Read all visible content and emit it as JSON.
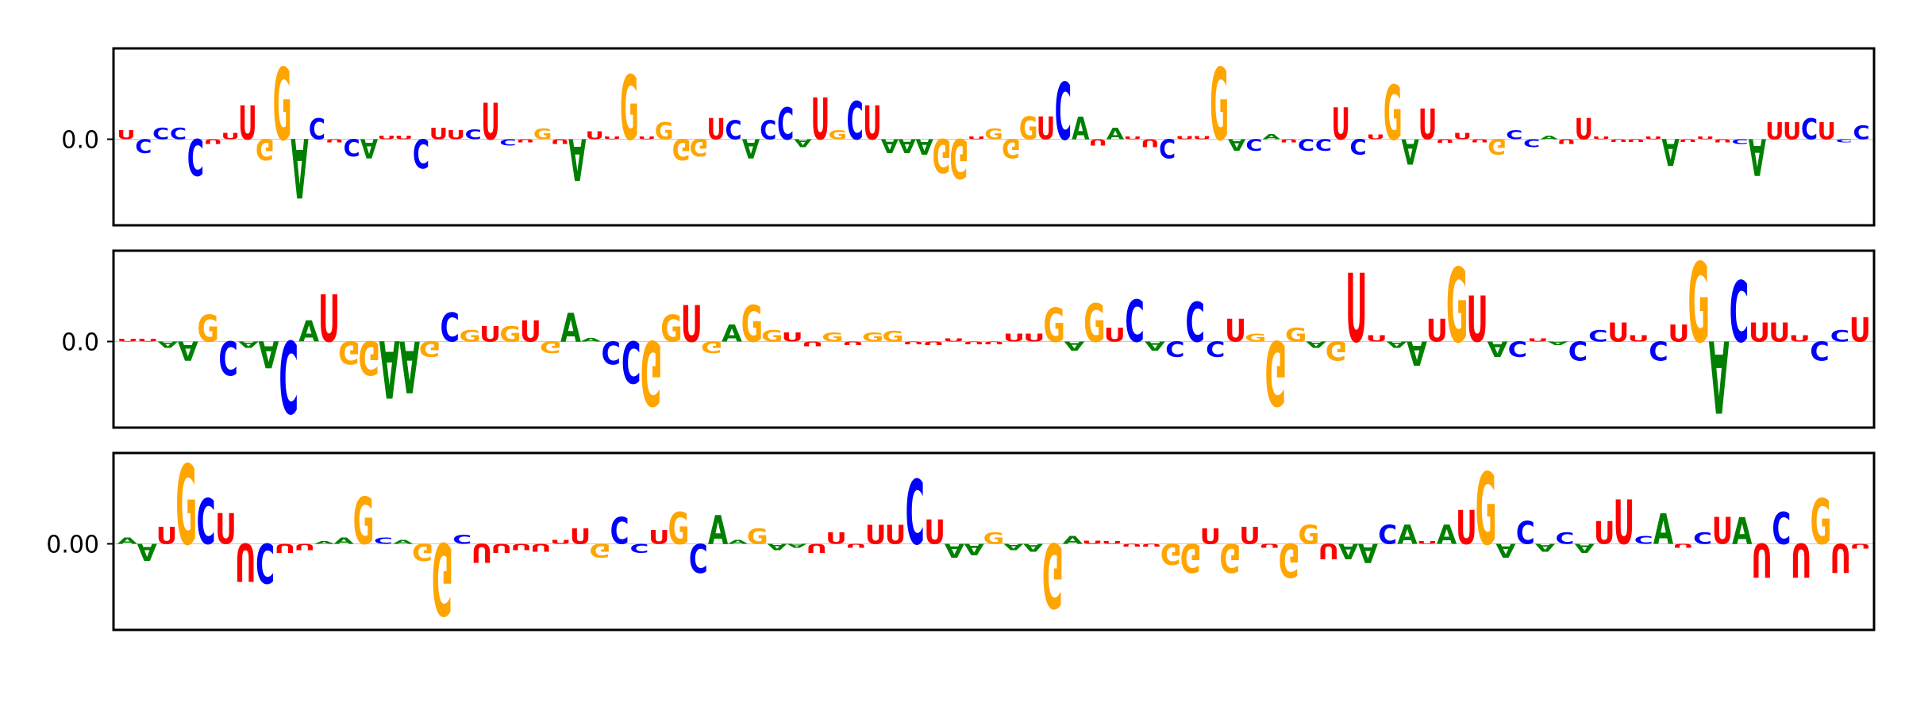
{
  "colors": {
    "A": "#008000",
    "C": "#0000ff",
    "G": "#ffa500",
    "U": "#ff0000"
  },
  "chart_data": [
    {
      "type": "sequence_logo",
      "alphabet": [
        "A",
        "C",
        "G",
        "U"
      ],
      "ytick_label": "0.0",
      "ylim": [
        -1,
        1
      ],
      "xticks": false,
      "positions": [
        {
          "l": "U",
          "v": 0.12
        },
        {
          "l": "C",
          "v": -0.18
        },
        {
          "l": "C",
          "v": 0.15
        },
        {
          "l": "C",
          "v": 0.15
        },
        {
          "l": "C",
          "v": -0.48
        },
        {
          "l": "U",
          "v": -0.06
        },
        {
          "l": "U",
          "v": 0.08
        },
        {
          "l": "U",
          "v": 0.45
        },
        {
          "l": "G",
          "v": -0.28
        },
        {
          "l": "G",
          "v": 0.95
        },
        {
          "l": "A",
          "v": -0.78
        },
        {
          "l": "C",
          "v": 0.28
        },
        {
          "l": "U",
          "v": -0.04
        },
        {
          "l": "C",
          "v": -0.22
        },
        {
          "l": "A",
          "v": -0.25
        },
        {
          "l": "U",
          "v": 0.05
        },
        {
          "l": "U",
          "v": 0.05
        },
        {
          "l": "C",
          "v": -0.38
        },
        {
          "l": "U",
          "v": 0.15
        },
        {
          "l": "U",
          "v": 0.12
        },
        {
          "l": "C",
          "v": 0.13
        },
        {
          "l": "U",
          "v": 0.48
        },
        {
          "l": "C",
          "v": -0.08
        },
        {
          "l": "U",
          "v": -0.04
        },
        {
          "l": "G",
          "v": 0.14
        },
        {
          "l": "U",
          "v": -0.06
        },
        {
          "l": "A",
          "v": -0.55
        },
        {
          "l": "U",
          "v": 0.1
        },
        {
          "l": "U",
          "v": 0.03
        },
        {
          "l": "G",
          "v": 0.85
        },
        {
          "l": "U",
          "v": 0.02
        },
        {
          "l": "G",
          "v": 0.22
        },
        {
          "l": "G",
          "v": -0.28
        },
        {
          "l": "G",
          "v": -0.22
        },
        {
          "l": "U",
          "v": 0.28
        },
        {
          "l": "C",
          "v": 0.25
        },
        {
          "l": "A",
          "v": -0.25
        },
        {
          "l": "C",
          "v": 0.25
        },
        {
          "l": "C",
          "v": 0.42
        },
        {
          "l": "A",
          "v": -0.1
        },
        {
          "l": "U",
          "v": 0.55
        },
        {
          "l": "G",
          "v": 0.12
        },
        {
          "l": "C",
          "v": 0.5
        },
        {
          "l": "U",
          "v": 0.45
        },
        {
          "l": "A",
          "v": -0.18
        },
        {
          "l": "A",
          "v": -0.18
        },
        {
          "l": "A",
          "v": -0.2
        },
        {
          "l": "G",
          "v": -0.45
        },
        {
          "l": "G",
          "v": -0.52
        },
        {
          "l": "U",
          "v": 0.03
        },
        {
          "l": "G",
          "v": 0.14
        },
        {
          "l": "G",
          "v": -0.25
        },
        {
          "l": "G",
          "v": 0.3
        },
        {
          "l": "U",
          "v": 0.3
        },
        {
          "l": "C",
          "v": 0.75
        },
        {
          "l": "A",
          "v": 0.3
        },
        {
          "l": "U",
          "v": -0.08
        },
        {
          "l": "A",
          "v": 0.15
        },
        {
          "l": "U",
          "v": 0.03
        },
        {
          "l": "U",
          "v": -0.1
        },
        {
          "l": "C",
          "v": -0.25
        },
        {
          "l": "U",
          "v": 0.04
        },
        {
          "l": "U",
          "v": 0.04
        },
        {
          "l": "G",
          "v": 0.95
        },
        {
          "l": "A",
          "v": -0.15
        },
        {
          "l": "C",
          "v": -0.15
        },
        {
          "l": "A",
          "v": 0.07
        },
        {
          "l": "U",
          "v": -0.04
        },
        {
          "l": "C",
          "v": -0.15
        },
        {
          "l": "C",
          "v": -0.15
        },
        {
          "l": "U",
          "v": 0.42
        },
        {
          "l": "C",
          "v": -0.2
        },
        {
          "l": "U",
          "v": 0.06
        },
        {
          "l": "G",
          "v": 0.72
        },
        {
          "l": "A",
          "v": -0.33
        },
        {
          "l": "U",
          "v": 0.4
        },
        {
          "l": "U",
          "v": -0.05
        },
        {
          "l": "U",
          "v": 0.08
        },
        {
          "l": "U",
          "v": -0.04
        },
        {
          "l": "G",
          "v": -0.2
        },
        {
          "l": "C",
          "v": 0.12
        },
        {
          "l": "C",
          "v": -0.1
        },
        {
          "l": "A",
          "v": 0.05
        },
        {
          "l": "U",
          "v": -0.06
        },
        {
          "l": "U",
          "v": 0.28
        },
        {
          "l": "U",
          "v": 0.03
        },
        {
          "l": "U",
          "v": -0.02
        },
        {
          "l": "U",
          "v": -0.03
        },
        {
          "l": "U",
          "v": 0.02
        },
        {
          "l": "A",
          "v": -0.35
        },
        {
          "l": "U",
          "v": -0.03
        },
        {
          "l": "U",
          "v": 0.03
        },
        {
          "l": "U",
          "v": -0.04
        },
        {
          "l": "C",
          "v": -0.06
        },
        {
          "l": "A",
          "v": -0.48
        },
        {
          "l": "U",
          "v": 0.22
        },
        {
          "l": "U",
          "v": 0.22
        },
        {
          "l": "C",
          "v": 0.28
        },
        {
          "l": "U",
          "v": 0.22
        },
        {
          "l": "C",
          "v": -0.04
        },
        {
          "l": "C",
          "v": 0.18
        }
      ]
    },
    {
      "type": "sequence_logo",
      "alphabet": [
        "A",
        "C",
        "G",
        "U"
      ],
      "ytick_label": "0.0",
      "ylim": [
        -1,
        1
      ],
      "xticks": false,
      "positions": [
        {
          "l": "U",
          "v": 0.02
        },
        {
          "l": "U",
          "v": 0.02
        },
        {
          "l": "A",
          "v": -0.08
        },
        {
          "l": "A",
          "v": -0.25
        },
        {
          "l": "G",
          "v": 0.35
        },
        {
          "l": "C",
          "v": -0.45
        },
        {
          "l": "A",
          "v": -0.08
        },
        {
          "l": "A",
          "v": -0.35
        },
        {
          "l": "C",
          "v": -0.95
        },
        {
          "l": "A",
          "v": 0.28
        },
        {
          "l": "U",
          "v": 0.62
        },
        {
          "l": "G",
          "v": -0.3
        },
        {
          "l": "G",
          "v": -0.45
        },
        {
          "l": "A",
          "v": -0.75
        },
        {
          "l": "A",
          "v": -0.68
        },
        {
          "l": "G",
          "v": -0.2
        },
        {
          "l": "C",
          "v": 0.38
        },
        {
          "l": "G",
          "v": 0.15
        },
        {
          "l": "U",
          "v": 0.2
        },
        {
          "l": "G",
          "v": 0.2
        },
        {
          "l": "U",
          "v": 0.28
        },
        {
          "l": "G",
          "v": -0.15
        },
        {
          "l": "A",
          "v": 0.38
        },
        {
          "l": "A",
          "v": 0.05
        },
        {
          "l": "C",
          "v": -0.3
        },
        {
          "l": "C",
          "v": -0.55
        },
        {
          "l": "G",
          "v": -0.85
        },
        {
          "l": "G",
          "v": 0.35
        },
        {
          "l": "U",
          "v": 0.48
        },
        {
          "l": "G",
          "v": -0.15
        },
        {
          "l": "A",
          "v": 0.22
        },
        {
          "l": "G",
          "v": 0.48
        },
        {
          "l": "G",
          "v": 0.15
        },
        {
          "l": "U",
          "v": 0.12
        },
        {
          "l": "U",
          "v": -0.06
        },
        {
          "l": "G",
          "v": 0.12
        },
        {
          "l": "U",
          "v": -0.05
        },
        {
          "l": "G",
          "v": 0.12
        },
        {
          "l": "G",
          "v": 0.14
        },
        {
          "l": "U",
          "v": -0.03
        },
        {
          "l": "U",
          "v": -0.05
        },
        {
          "l": "U",
          "v": 0.04
        },
        {
          "l": "U",
          "v": -0.02
        },
        {
          "l": "U",
          "v": -0.02
        },
        {
          "l": "U",
          "v": 0.1
        },
        {
          "l": "U",
          "v": 0.1
        },
        {
          "l": "G",
          "v": 0.45
        },
        {
          "l": "A",
          "v": -0.12
        },
        {
          "l": "G",
          "v": 0.5
        },
        {
          "l": "U",
          "v": 0.18
        },
        {
          "l": "C",
          "v": 0.55
        },
        {
          "l": "A",
          "v": -0.12
        },
        {
          "l": "C",
          "v": -0.2
        },
        {
          "l": "C",
          "v": 0.52
        },
        {
          "l": "C",
          "v": -0.2
        },
        {
          "l": "U",
          "v": 0.3
        },
        {
          "l": "G",
          "v": 0.1
        },
        {
          "l": "G",
          "v": -0.85
        },
        {
          "l": "G",
          "v": 0.18
        },
        {
          "l": "A",
          "v": -0.08
        },
        {
          "l": "G",
          "v": -0.25
        },
        {
          "l": "U",
          "v": 0.9
        },
        {
          "l": "U",
          "v": 0.08
        },
        {
          "l": "A",
          "v": -0.08
        },
        {
          "l": "A",
          "v": -0.32
        },
        {
          "l": "U",
          "v": 0.3
        },
        {
          "l": "G",
          "v": 0.98
        },
        {
          "l": "U",
          "v": 0.6
        },
        {
          "l": "A",
          "v": -0.2
        },
        {
          "l": "C",
          "v": -0.2
        },
        {
          "l": "U",
          "v": 0.04
        },
        {
          "l": "A",
          "v": -0.05
        },
        {
          "l": "C",
          "v": -0.25
        },
        {
          "l": "C",
          "v": 0.15
        },
        {
          "l": "U",
          "v": 0.25
        },
        {
          "l": "U",
          "v": 0.08
        },
        {
          "l": "C",
          "v": -0.25
        },
        {
          "l": "U",
          "v": 0.22
        },
        {
          "l": "G",
          "v": 1.05
        },
        {
          "l": "A",
          "v": -0.95
        },
        {
          "l": "C",
          "v": 0.8
        },
        {
          "l": "U",
          "v": 0.25
        },
        {
          "l": "U",
          "v": 0.25
        },
        {
          "l": "U",
          "v": 0.08
        },
        {
          "l": "C",
          "v": -0.25
        },
        {
          "l": "C",
          "v": 0.15
        },
        {
          "l": "U",
          "v": 0.32
        }
      ]
    },
    {
      "type": "sequence_logo",
      "alphabet": [
        "A",
        "C",
        "G",
        "U"
      ],
      "ytick_label": "0.00",
      "ylim": [
        -1,
        1
      ],
      "xticks": false,
      "positions": [
        {
          "l": "A",
          "v": 0.08
        },
        {
          "l": "A",
          "v": -0.22
        },
        {
          "l": "U",
          "v": 0.22
        },
        {
          "l": "G",
          "v": 1.05
        },
        {
          "l": "C",
          "v": 0.6
        },
        {
          "l": "U",
          "v": 0.4
        },
        {
          "l": "U",
          "v": -0.5
        },
        {
          "l": "C",
          "v": -0.52
        },
        {
          "l": "U",
          "v": -0.12
        },
        {
          "l": "U",
          "v": -0.08
        },
        {
          "l": "A",
          "v": 0.03
        },
        {
          "l": "A",
          "v": 0.08
        },
        {
          "l": "G",
          "v": 0.62
        },
        {
          "l": "C",
          "v": 0.08
        },
        {
          "l": "A",
          "v": 0.05
        },
        {
          "l": "G",
          "v": -0.22
        },
        {
          "l": "G",
          "v": -0.95
        },
        {
          "l": "C",
          "v": 0.12
        },
        {
          "l": "U",
          "v": -0.25
        },
        {
          "l": "U",
          "v": -0.12
        },
        {
          "l": "U",
          "v": -0.08
        },
        {
          "l": "U",
          "v": -0.1
        },
        {
          "l": "U",
          "v": 0.05
        },
        {
          "l": "U",
          "v": 0.2
        },
        {
          "l": "G",
          "v": -0.18
        },
        {
          "l": "C",
          "v": 0.35
        },
        {
          "l": "C",
          "v": -0.12
        },
        {
          "l": "U",
          "v": 0.18
        },
        {
          "l": "G",
          "v": 0.42
        },
        {
          "l": "C",
          "v": -0.38
        },
        {
          "l": "A",
          "v": 0.38
        },
        {
          "l": "A",
          "v": 0.05
        },
        {
          "l": "G",
          "v": 0.2
        },
        {
          "l": "A",
          "v": -0.08
        },
        {
          "l": "A",
          "v": -0.05
        },
        {
          "l": "U",
          "v": -0.12
        },
        {
          "l": "U",
          "v": 0.15
        },
        {
          "l": "U",
          "v": -0.05
        },
        {
          "l": "U",
          "v": 0.25
        },
        {
          "l": "U",
          "v": 0.25
        },
        {
          "l": "C",
          "v": 0.85
        },
        {
          "l": "U",
          "v": 0.32
        },
        {
          "l": "A",
          "v": -0.18
        },
        {
          "l": "A",
          "v": -0.15
        },
        {
          "l": "G",
          "v": 0.15
        },
        {
          "l": "A",
          "v": -0.08
        },
        {
          "l": "A",
          "v": -0.1
        },
        {
          "l": "G",
          "v": -0.85
        },
        {
          "l": "A",
          "v": 0.1
        },
        {
          "l": "U",
          "v": 0.04
        },
        {
          "l": "U",
          "v": 0.02
        },
        {
          "l": "U",
          "v": -0.02
        },
        {
          "l": "U",
          "v": -0.03
        },
        {
          "l": "G",
          "v": -0.28
        },
        {
          "l": "G",
          "v": -0.38
        },
        {
          "l": "U",
          "v": 0.2
        },
        {
          "l": "G",
          "v": -0.38
        },
        {
          "l": "U",
          "v": 0.22
        },
        {
          "l": "U",
          "v": -0.05
        },
        {
          "l": "G",
          "v": -0.45
        },
        {
          "l": "G",
          "v": 0.25
        },
        {
          "l": "U",
          "v": -0.2
        },
        {
          "l": "A",
          "v": -0.2
        },
        {
          "l": "A",
          "v": -0.25
        },
        {
          "l": "C",
          "v": 0.25
        },
        {
          "l": "A",
          "v": 0.25
        },
        {
          "l": "U",
          "v": 0.02
        },
        {
          "l": "A",
          "v": 0.25
        },
        {
          "l": "U",
          "v": 0.45
        },
        {
          "l": "G",
          "v": 0.95
        },
        {
          "l": "A",
          "v": -0.18
        },
        {
          "l": "C",
          "v": 0.3
        },
        {
          "l": "A",
          "v": -0.1
        },
        {
          "l": "C",
          "v": 0.15
        },
        {
          "l": "A",
          "v": -0.12
        },
        {
          "l": "U",
          "v": 0.3
        },
        {
          "l": "U",
          "v": 0.58
        },
        {
          "l": "C",
          "v": 0.1
        },
        {
          "l": "A",
          "v": 0.4
        },
        {
          "l": "U",
          "v": -0.05
        },
        {
          "l": "C",
          "v": 0.15
        },
        {
          "l": "U",
          "v": 0.35
        },
        {
          "l": "A",
          "v": 0.35
        },
        {
          "l": "U",
          "v": -0.45
        },
        {
          "l": "C",
          "v": 0.42
        },
        {
          "l": "U",
          "v": -0.45
        },
        {
          "l": "G",
          "v": 0.6
        },
        {
          "l": "U",
          "v": -0.38
        },
        {
          "l": "U",
          "v": -0.06
        }
      ]
    }
  ]
}
